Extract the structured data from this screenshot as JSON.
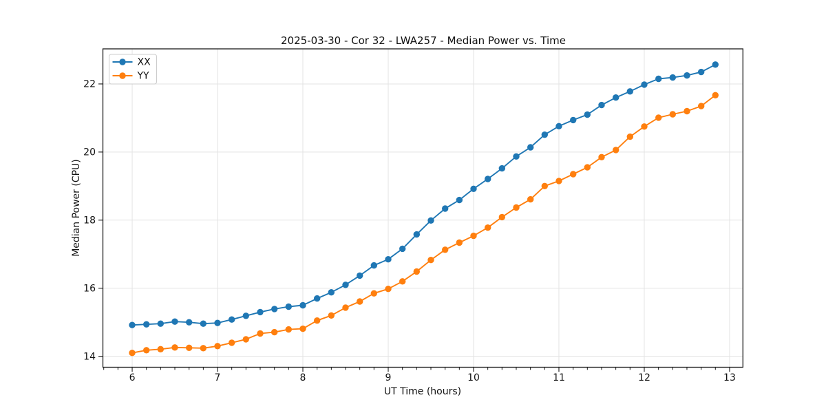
{
  "chart_data": {
    "type": "line",
    "title": "2025-03-30 - Cor 32 - LWA257 - Median Power vs. Time",
    "xlabel": "UT Time (hours)",
    "ylabel": "Median Power (CPU)",
    "xlim": [
      5.657,
      13.156
    ],
    "ylim": [
      13.68,
      23.03
    ],
    "x_major_ticks": [
      6,
      7,
      8,
      9,
      10,
      11,
      12,
      13
    ],
    "x_minor_ticks_per_hour": 6,
    "y_major_ticks": [
      14,
      16,
      18,
      20,
      22
    ],
    "grid": true,
    "legend_position": "upper-left",
    "x": [
      6.0,
      6.167,
      6.333,
      6.5,
      6.667,
      6.833,
      7.0,
      7.167,
      7.333,
      7.5,
      7.667,
      7.833,
      8.0,
      8.167,
      8.333,
      8.5,
      8.667,
      8.833,
      9.0,
      9.167,
      9.333,
      9.5,
      9.667,
      9.833,
      10.0,
      10.167,
      10.333,
      10.5,
      10.667,
      10.833,
      11.0,
      11.167,
      11.333,
      11.5,
      11.667,
      11.833,
      12.0,
      12.167,
      12.333,
      12.5,
      12.667,
      12.833
    ],
    "series": [
      {
        "name": "XX",
        "color": "#1f77b4",
        "values": [
          14.92,
          14.94,
          14.96,
          15.02,
          15.0,
          14.96,
          14.98,
          15.08,
          15.19,
          15.3,
          15.39,
          15.46,
          15.5,
          15.7,
          15.88,
          16.1,
          16.37,
          16.67,
          16.85,
          17.16,
          17.58,
          17.99,
          18.34,
          18.59,
          18.92,
          19.21,
          19.52,
          19.87,
          20.14,
          20.51,
          20.76,
          20.94,
          21.1,
          21.38,
          21.6,
          21.78,
          21.98,
          22.15,
          22.19,
          22.25,
          22.35,
          22.57
        ]
      },
      {
        "name": "YY",
        "color": "#ff7f0e",
        "values": [
          14.1,
          14.18,
          14.21,
          14.26,
          14.25,
          14.24,
          14.3,
          14.4,
          14.5,
          14.67,
          14.71,
          14.79,
          14.81,
          15.05,
          15.2,
          15.43,
          15.61,
          15.85,
          15.98,
          16.2,
          16.49,
          16.83,
          17.13,
          17.34,
          17.54,
          17.78,
          18.09,
          18.37,
          18.61,
          19.0,
          19.15,
          19.35,
          19.55,
          19.85,
          20.06,
          20.45,
          20.75,
          21.01,
          21.11,
          21.2,
          21.35,
          21.67
        ]
      }
    ],
    "colors": {
      "grid": "#e3e3e3",
      "spine": "#1a1a1a",
      "tick": "#1a1a1a",
      "legend_border": "#cccccc",
      "background": "#ffffff"
    }
  }
}
